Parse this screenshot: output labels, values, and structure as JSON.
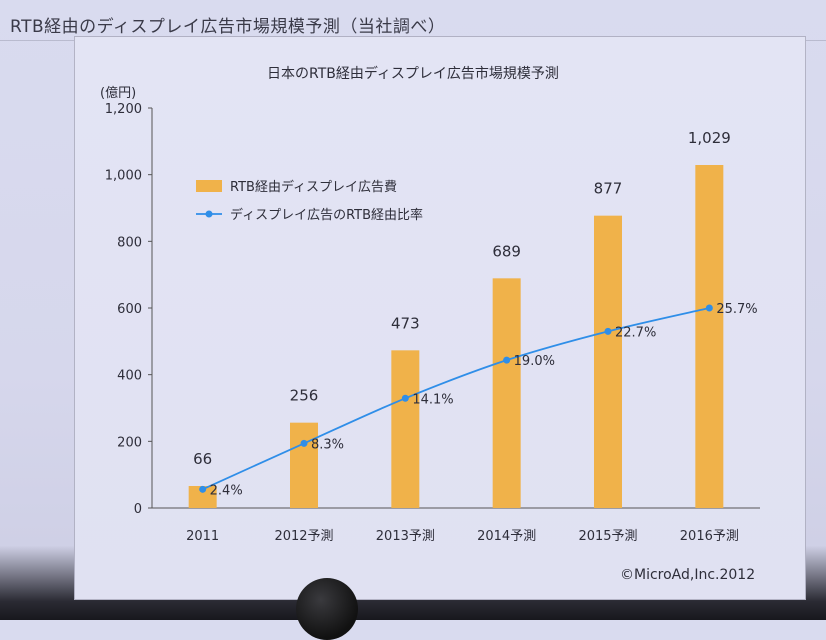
{
  "slide": {
    "title": "RTB経由のディスプレイ広告市場規模予測（当社調べ）"
  },
  "chart_data": {
    "type": "bar",
    "title": "日本のRTB経由ディスプレイ広告市場規模予測",
    "ylabel": "(億円)",
    "ylim": [
      0,
      1200
    ],
    "yticks": [
      0,
      200,
      400,
      600,
      800,
      1000,
      1200
    ],
    "ytick_labels": [
      "0",
      "200",
      "400",
      "600",
      "800",
      "1,000",
      "1,200"
    ],
    "categories": [
      "2011",
      "2012予測",
      "2013予測",
      "2014予測",
      "2015予測",
      "2016予測"
    ],
    "series": [
      {
        "name": "RTB経由ディスプレイ広告費",
        "kind": "bar",
        "color": "#f0b24a",
        "values": [
          66,
          256,
          473,
          689,
          877,
          1029
        ],
        "labels": [
          "66",
          "256",
          "473",
          "689",
          "877",
          "1,029"
        ]
      },
      {
        "name": "ディスプレイ広告のRTB経由比率",
        "kind": "line",
        "color": "#2f8ee8",
        "values": [
          2.4,
          8.3,
          14.1,
          19.0,
          22.7,
          25.7
        ],
        "labels": [
          "2.4%",
          "8.3%",
          "14.1%",
          "19.0%",
          "22.7%",
          "25.7%"
        ],
        "plot_scale": "secondary, unlabeled"
      }
    ],
    "legend_position": "upper-left",
    "grid": false,
    "source": "©MicroAd,Inc.2012"
  }
}
